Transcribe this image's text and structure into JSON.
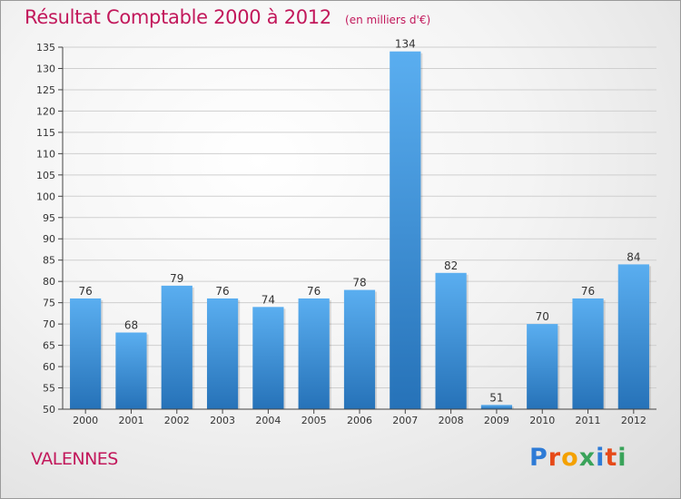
{
  "header": {
    "title": "Résultat Comptable 2000 à 2012",
    "subtitle": "(en milliers d'€)"
  },
  "footer": {
    "city": "VALENNES",
    "logo_letters": [
      "P",
      "r",
      "o",
      "x",
      "i",
      "t",
      "i"
    ],
    "logo_colors": [
      "#2e7bd6",
      "#e64a19",
      "#f4a100",
      "#3aa35a",
      "#2e7bd6",
      "#e64a19",
      "#3aa35a"
    ]
  },
  "chart_data": {
    "type": "bar",
    "categories": [
      "2000",
      "2001",
      "2002",
      "2003",
      "2004",
      "2005",
      "2006",
      "2007",
      "2008",
      "2009",
      "2010",
      "2011",
      "2012"
    ],
    "values": [
      76,
      68,
      79,
      76,
      74,
      76,
      78,
      134,
      82,
      51,
      70,
      76,
      84
    ],
    "title": "Résultat Comptable 2000 à 2012",
    "xlabel": "",
    "ylabel": "",
    "ylim": [
      50,
      135
    ],
    "yticks": [
      50,
      55,
      60,
      65,
      70,
      75,
      80,
      85,
      90,
      95,
      100,
      105,
      110,
      115,
      120,
      125,
      130,
      135
    ],
    "grid": true,
    "bar_color": "#4a9de0",
    "bar_color_dark": "#2a78be",
    "label_color": "#333333"
  }
}
